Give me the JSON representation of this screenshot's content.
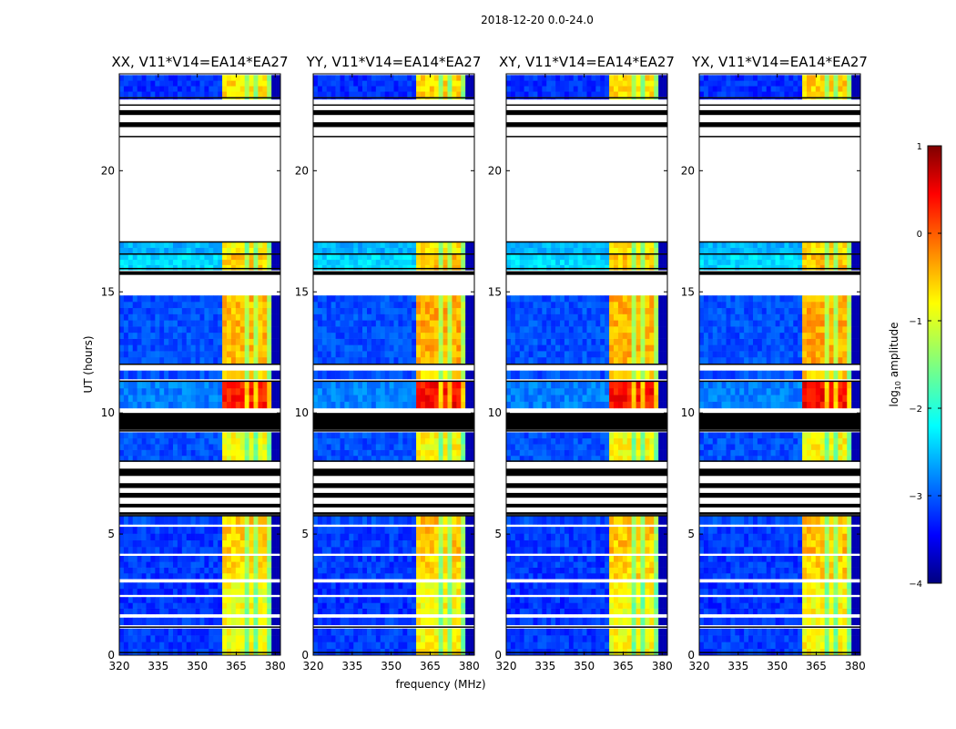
{
  "figure": {
    "suptitle": "2018-12-20 0.0-24.0",
    "xlabel": "frequency (MHz)",
    "ylabel": "UT (hours)"
  },
  "chart_data": {
    "type": "heatmap",
    "x_range_mhz": [
      320,
      382
    ],
    "x_ticks": [
      320,
      335,
      350,
      365,
      380
    ],
    "x_tick_labels": [
      "320",
      "335",
      "350",
      "365",
      "380"
    ],
    "y_range_hours": [
      0,
      24
    ],
    "y_ticks": [
      0,
      5,
      10,
      15,
      20
    ],
    "y_tick_labels": [
      "0",
      "5",
      "10",
      "15",
      "20"
    ],
    "panels": [
      {
        "title": "XX, V11*V14=EA14*EA27",
        "polarization": "XX",
        "rfi_level": 0.45,
        "show_y_ticks": true
      },
      {
        "title": "YY, V11*V14=EA14*EA27",
        "polarization": "YY",
        "rfi_level": 0.55,
        "show_y_ticks": true
      },
      {
        "title": "XY, V11*V14=EA14*EA27",
        "polarization": "XY",
        "rfi_level": 0.5,
        "show_y_ticks": true
      },
      {
        "title": "YX, V11*V14=EA14*EA27",
        "polarization": "YX",
        "rfi_level": 0.55,
        "show_y_ticks": true
      }
    ],
    "rfi_band_mhz": [
      360,
      378
    ],
    "rfi_columns_mhz": [
      [
        360,
        364.5
      ],
      [
        365,
        368.5
      ],
      [
        369.5,
        372.5
      ],
      [
        373.5,
        376.5
      ]
    ],
    "flagged_full_hours": [
      [
        9.3,
        10.0
      ],
      [
        7.4,
        7.7
      ],
      [
        6.9,
        7.1
      ],
      [
        6.5,
        6.7
      ],
      [
        6.1,
        6.25
      ],
      [
        5.8,
        5.9
      ],
      [
        21.8,
        22.0
      ],
      [
        22.3,
        22.5
      ],
      [
        15.7,
        15.85
      ]
    ],
    "empty_hours": [
      [
        17.1,
        21.3
      ],
      [
        22.6,
        23.0
      ],
      [
        11.8,
        12.0
      ]
    ],
    "colorbar": {
      "label": "log10 amplitude",
      "range": [
        -4,
        1
      ],
      "ticks": [
        1,
        0,
        -1,
        -2,
        -3,
        -4
      ],
      "tick_labels": [
        "1",
        "0",
        "−1",
        "−2",
        "−3",
        "−4"
      ],
      "colormap": "jet"
    }
  }
}
